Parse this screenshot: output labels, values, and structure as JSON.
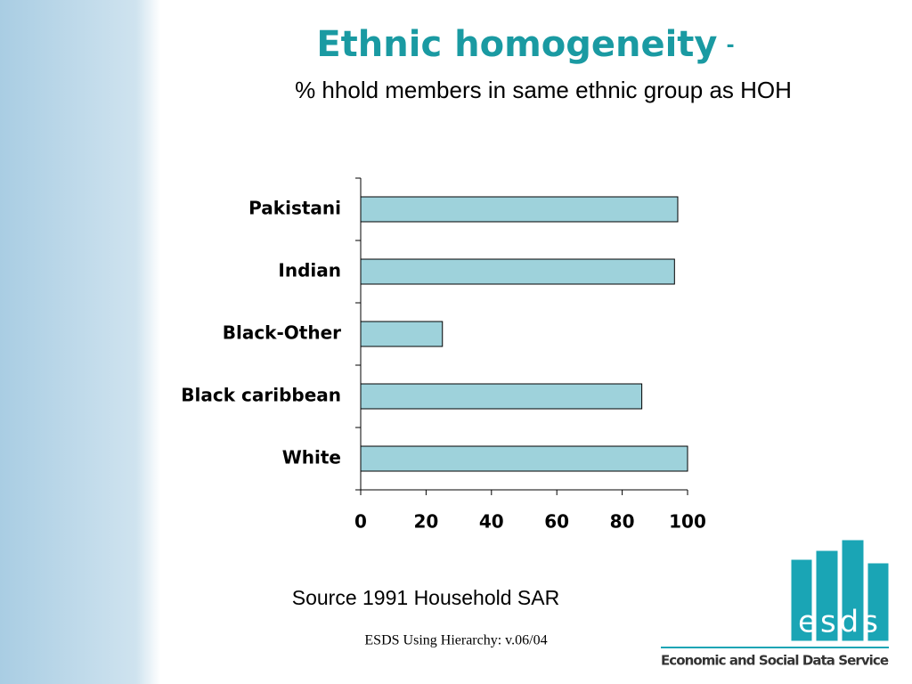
{
  "chart_data": {
    "type": "bar",
    "orientation": "horizontal",
    "title": "Ethnic homogeneity",
    "title_dash": "-",
    "subtitle": "% hhold members in same ethnic group as HOH",
    "categories": [
      "Pakistani",
      "Indian",
      "Black-Other",
      "Black caribbean",
      "White"
    ],
    "values": [
      97,
      96,
      25,
      86,
      100
    ],
    "color": "#9ed2db",
    "xlim": [
      0,
      100
    ],
    "xticks": [
      0,
      20,
      40,
      60,
      80,
      100
    ],
    "source": "Source 1991 Household SAR"
  },
  "footer": "ESDS Using Hierarchy: v.06/04",
  "logo": {
    "text": "esds",
    "name": "Economic and Social Data Service"
  }
}
